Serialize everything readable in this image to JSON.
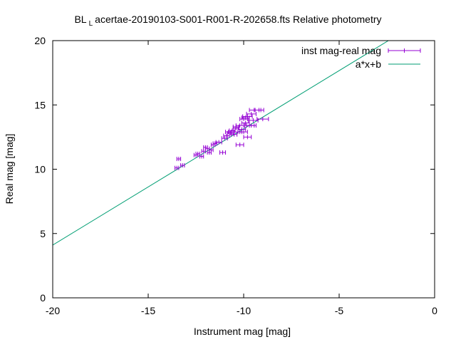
{
  "chart_data": {
    "type": "scatter",
    "title_prefix": "BL",
    "title_subscript": "L",
    "title_rest": "acertae-20190103-S001-R001-R-202658.fts Relative photometry",
    "xlabel": "Instrument mag [mag]",
    "ylabel": "Real mag [mag]",
    "xlim": [
      -20,
      0
    ],
    "ylim": [
      0,
      20
    ],
    "xticks": [
      -20,
      -15,
      -10,
      -5,
      0
    ],
    "yticks": [
      0,
      5,
      10,
      15,
      20
    ],
    "grid": false,
    "legend_position": "top-right",
    "colors": {
      "points": "#9400d3",
      "fit": "#009e73"
    },
    "series": [
      {
        "name": "inst mag-real mag",
        "kind": "points-with-x-errorbars",
        "points": [
          {
            "x": -13.5,
            "y": 10.1,
            "xerr": 0.1
          },
          {
            "x": -13.4,
            "y": 10.8,
            "xerr": 0.1
          },
          {
            "x": -13.2,
            "y": 10.3,
            "xerr": 0.1
          },
          {
            "x": -12.5,
            "y": 11.1,
            "xerr": 0.1
          },
          {
            "x": -12.4,
            "y": 11.2,
            "xerr": 0.1
          },
          {
            "x": -12.2,
            "y": 11.0,
            "xerr": 0.1
          },
          {
            "x": -12.1,
            "y": 11.4,
            "xerr": 0.1
          },
          {
            "x": -12.0,
            "y": 11.7,
            "xerr": 0.1
          },
          {
            "x": -11.9,
            "y": 11.6,
            "xerr": 0.1
          },
          {
            "x": -11.8,
            "y": 11.3,
            "xerr": 0.1
          },
          {
            "x": -11.7,
            "y": 11.5,
            "xerr": 0.1
          },
          {
            "x": -11.6,
            "y": 11.9,
            "xerr": 0.1
          },
          {
            "x": -11.5,
            "y": 12.0,
            "xerr": 0.1
          },
          {
            "x": -11.3,
            "y": 12.1,
            "xerr": 0.15
          },
          {
            "x": -11.1,
            "y": 11.3,
            "xerr": 0.15
          },
          {
            "x": -11.0,
            "y": 12.4,
            "xerr": 0.15
          },
          {
            "x": -10.9,
            "y": 12.6,
            "xerr": 0.15
          },
          {
            "x": -10.7,
            "y": 12.8,
            "xerr": 0.15
          },
          {
            "x": -10.6,
            "y": 13.0,
            "xerr": 0.15
          },
          {
            "x": -10.5,
            "y": 12.7,
            "xerr": 0.15
          },
          {
            "x": -10.4,
            "y": 13.2,
            "xerr": 0.15
          },
          {
            "x": -10.3,
            "y": 12.9,
            "xerr": 0.2
          },
          {
            "x": -10.2,
            "y": 13.4,
            "xerr": 0.2
          },
          {
            "x": -10.1,
            "y": 13.1,
            "xerr": 0.2
          },
          {
            "x": -10.0,
            "y": 12.9,
            "xerr": 0.2
          },
          {
            "x": -10.2,
            "y": 11.9,
            "xerr": 0.2
          },
          {
            "x": -10.0,
            "y": 13.9,
            "xerr": 0.2
          },
          {
            "x": -9.9,
            "y": 13.6,
            "xerr": 0.2
          },
          {
            "x": -9.8,
            "y": 14.1,
            "xerr": 0.25
          },
          {
            "x": -9.8,
            "y": 12.5,
            "xerr": 0.2
          },
          {
            "x": -9.7,
            "y": 13.4,
            "xerr": 0.25
          },
          {
            "x": -9.6,
            "y": 14.3,
            "xerr": 0.25
          },
          {
            "x": -9.5,
            "y": 13.8,
            "xerr": 0.25
          },
          {
            "x": -9.4,
            "y": 14.6,
            "xerr": 0.3
          },
          {
            "x": -9.2,
            "y": 14.6,
            "xerr": 0.25
          },
          {
            "x": -9.0,
            "y": 13.9,
            "xerr": 0.3
          },
          {
            "x": -9.9,
            "y": 14.0,
            "xerr": 0.2
          },
          {
            "x": -10.4,
            "y": 13.3,
            "xerr": 0.15
          },
          {
            "x": -10.8,
            "y": 12.9,
            "xerr": 0.15
          },
          {
            "x": -9.6,
            "y": 13.4,
            "xerr": 0.25
          }
        ]
      },
      {
        "name": "a*x+b",
        "kind": "line",
        "x": [
          -20,
          -2.42
        ],
        "y": [
          4.1,
          20
        ]
      }
    ]
  }
}
